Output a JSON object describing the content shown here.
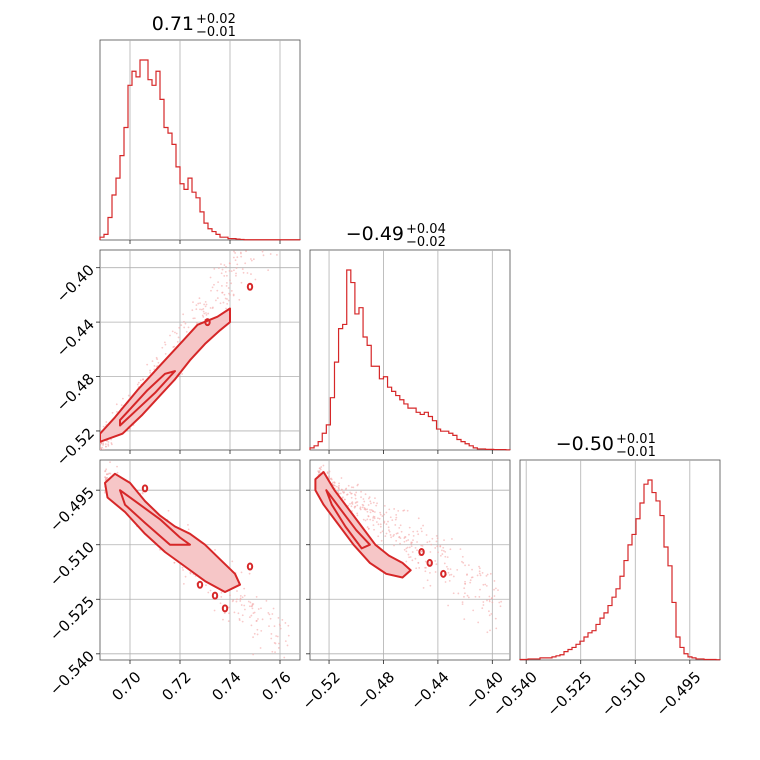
{
  "chart_data": {
    "type": "corner",
    "color": "#d62728",
    "parameters": [
      {
        "title": {
          "median": "0.71",
          "plus": "+0.02",
          "minus": "−0.01"
        },
        "range": [
          0.688,
          0.768
        ],
        "ticks": [
          0.7,
          0.72,
          0.74,
          0.76
        ],
        "tick_labels": [
          "0.70",
          "0.72",
          "0.74",
          "0.76"
        ],
        "hist_bin_edges_start": 0.688,
        "hist_bin_width": 0.0016,
        "hist_counts": [
          1,
          2,
          8,
          16,
          22,
          30,
          40,
          55,
          60,
          58,
          64,
          64,
          57,
          55,
          60,
          50,
          40,
          38,
          34,
          26,
          20,
          18,
          22,
          17,
          15,
          10,
          6,
          4,
          3,
          2,
          1,
          1,
          0.5,
          0.5,
          0.3,
          0.2,
          0.1,
          0.1,
          0.1,
          0.1,
          0.1,
          0.1,
          0.1,
          0.1,
          0.1,
          0.1,
          0.1,
          0.1,
          0.1,
          0.1
        ]
      },
      {
        "title": {
          "median": "−0.49",
          "plus": "+0.04",
          "minus": "−0.02"
        },
        "range": [
          -0.534,
          -0.387
        ],
        "ticks": [
          -0.52,
          -0.48,
          -0.44,
          -0.4
        ],
        "tick_labels": [
          "−0.52",
          "−0.48",
          "−0.44",
          "−0.40"
        ],
        "hist_bin_edges_start": -0.534,
        "hist_bin_width": 0.003,
        "hist_counts": [
          1,
          2,
          4,
          8,
          12,
          25,
          42,
          58,
          60,
          86,
          80,
          65,
          68,
          54,
          50,
          40,
          40,
          34,
          35,
          30,
          28,
          26,
          24,
          22,
          20,
          20,
          18,
          17,
          18,
          16,
          14,
          10,
          9,
          9,
          8,
          7,
          5,
          4,
          3,
          2,
          1,
          0.5,
          0.5,
          0.3,
          0.3,
          0.2,
          0.2,
          0.2,
          0.1
        ]
      },
      {
        "title": {
          "median": "−0.50",
          "plus": "+0.01",
          "minus": "−0.01"
        },
        "range": [
          -0.5417,
          -0.4867
        ],
        "ticks": [
          -0.54,
          -0.525,
          -0.51,
          -0.495
        ],
        "tick_labels": [
          "−0.540",
          "−0.525",
          "−0.510",
          "−0.495"
        ],
        "hist_bin_edges_start": -0.5417,
        "hist_bin_width": 0.0011,
        "hist_counts": [
          0.5,
          0.5,
          1,
          1,
          1,
          2,
          2,
          2,
          3,
          4,
          5,
          8,
          10,
          12,
          15,
          18,
          22,
          26,
          28,
          34,
          40,
          45,
          52,
          60,
          68,
          80,
          95,
          110,
          120,
          135,
          150,
          168,
          172,
          160,
          152,
          138,
          108,
          90,
          55,
          22,
          12,
          6,
          3,
          2,
          1,
          1,
          0.5,
          0.5,
          0.5,
          0.3
        ]
      }
    ],
    "scatter_2d": [
      {
        "x_param": 0,
        "y_param": 1,
        "trend": {
          "x_start": 0.688,
          "y_start": -0.532,
          "slope": 2.4
        },
        "contour_outer": [
          [
            0.688,
            -0.528
          ],
          [
            0.697,
            -0.522
          ],
          [
            0.705,
            -0.508
          ],
          [
            0.712,
            -0.494
          ],
          [
            0.718,
            -0.482
          ],
          [
            0.724,
            -0.468
          ],
          [
            0.73,
            -0.456
          ],
          [
            0.736,
            -0.446
          ],
          [
            0.74,
            -0.44
          ],
          [
            0.74,
            -0.43
          ],
          [
            0.735,
            -0.436
          ],
          [
            0.727,
            -0.442
          ],
          [
            0.72,
            -0.456
          ],
          [
            0.712,
            -0.472
          ],
          [
            0.703,
            -0.49
          ],
          [
            0.694,
            -0.51
          ],
          [
            0.688,
            -0.522
          ],
          [
            0.688,
            -0.528
          ]
        ],
        "contour_inner": [
          [
            0.696,
            -0.516
          ],
          [
            0.703,
            -0.504
          ],
          [
            0.71,
            -0.492
          ],
          [
            0.716,
            -0.48
          ],
          [
            0.718,
            -0.476
          ],
          [
            0.714,
            -0.478
          ],
          [
            0.707,
            -0.49
          ],
          [
            0.7,
            -0.504
          ],
          [
            0.696,
            -0.512
          ],
          [
            0.696,
            -0.516
          ]
        ],
        "isolated_points": [
          [
            0.748,
            -0.414
          ],
          [
            0.731,
            -0.44
          ]
        ]
      },
      {
        "x_param": 0,
        "y_param": 2,
        "trend": {
          "x_start": 0.69,
          "y_start": -0.4922,
          "slope": -0.62
        },
        "contour_outer": [
          [
            0.69,
            -0.493
          ],
          [
            0.694,
            -0.4905
          ],
          [
            0.7,
            -0.493
          ],
          [
            0.706,
            -0.498
          ],
          [
            0.712,
            -0.502
          ],
          [
            0.718,
            -0.505
          ],
          [
            0.724,
            -0.507
          ],
          [
            0.73,
            -0.51
          ],
          [
            0.736,
            -0.514
          ],
          [
            0.742,
            -0.518
          ],
          [
            0.744,
            -0.521
          ],
          [
            0.738,
            -0.523
          ],
          [
            0.73,
            -0.52
          ],
          [
            0.722,
            -0.516
          ],
          [
            0.714,
            -0.512
          ],
          [
            0.706,
            -0.507
          ],
          [
            0.698,
            -0.501
          ],
          [
            0.691,
            -0.497
          ],
          [
            0.69,
            -0.493
          ]
        ],
        "contour_inner": [
          [
            0.696,
            -0.495
          ],
          [
            0.704,
            -0.499
          ],
          [
            0.712,
            -0.503
          ],
          [
            0.72,
            -0.508
          ],
          [
            0.724,
            -0.51
          ],
          [
            0.716,
            -0.51
          ],
          [
            0.706,
            -0.504
          ],
          [
            0.698,
            -0.499
          ],
          [
            0.696,
            -0.495
          ]
        ],
        "isolated_points": [
          [
            0.706,
            -0.4945
          ],
          [
            0.734,
            -0.524
          ],
          [
            0.738,
            -0.5275
          ],
          [
            0.728,
            -0.521
          ],
          [
            0.748,
            -0.516
          ]
        ]
      },
      {
        "x_param": 1,
        "y_param": 2,
        "trend": {
          "x_start": -0.528,
          "y_start": -0.4915,
          "slope": -0.26
        },
        "contour_outer": [
          [
            -0.53,
            -0.492
          ],
          [
            -0.524,
            -0.49
          ],
          [
            -0.516,
            -0.495
          ],
          [
            -0.506,
            -0.5
          ],
          [
            -0.496,
            -0.505
          ],
          [
            -0.486,
            -0.51
          ],
          [
            -0.476,
            -0.513
          ],
          [
            -0.466,
            -0.515
          ],
          [
            -0.46,
            -0.517
          ],
          [
            -0.466,
            -0.519
          ],
          [
            -0.478,
            -0.518
          ],
          [
            -0.49,
            -0.515
          ],
          [
            -0.502,
            -0.51
          ],
          [
            -0.514,
            -0.504
          ],
          [
            -0.524,
            -0.499
          ],
          [
            -0.53,
            -0.495
          ],
          [
            -0.53,
            -0.492
          ]
        ],
        "contour_inner": [
          [
            -0.522,
            -0.495
          ],
          [
            -0.512,
            -0.5
          ],
          [
            -0.5,
            -0.506
          ],
          [
            -0.49,
            -0.51
          ],
          [
            -0.496,
            -0.511
          ],
          [
            -0.508,
            -0.505
          ],
          [
            -0.518,
            -0.499
          ],
          [
            -0.522,
            -0.495
          ]
        ],
        "isolated_points": [
          [
            -0.446,
            -0.515
          ],
          [
            -0.436,
            -0.518
          ],
          [
            -0.452,
            -0.512
          ]
        ]
      }
    ]
  }
}
